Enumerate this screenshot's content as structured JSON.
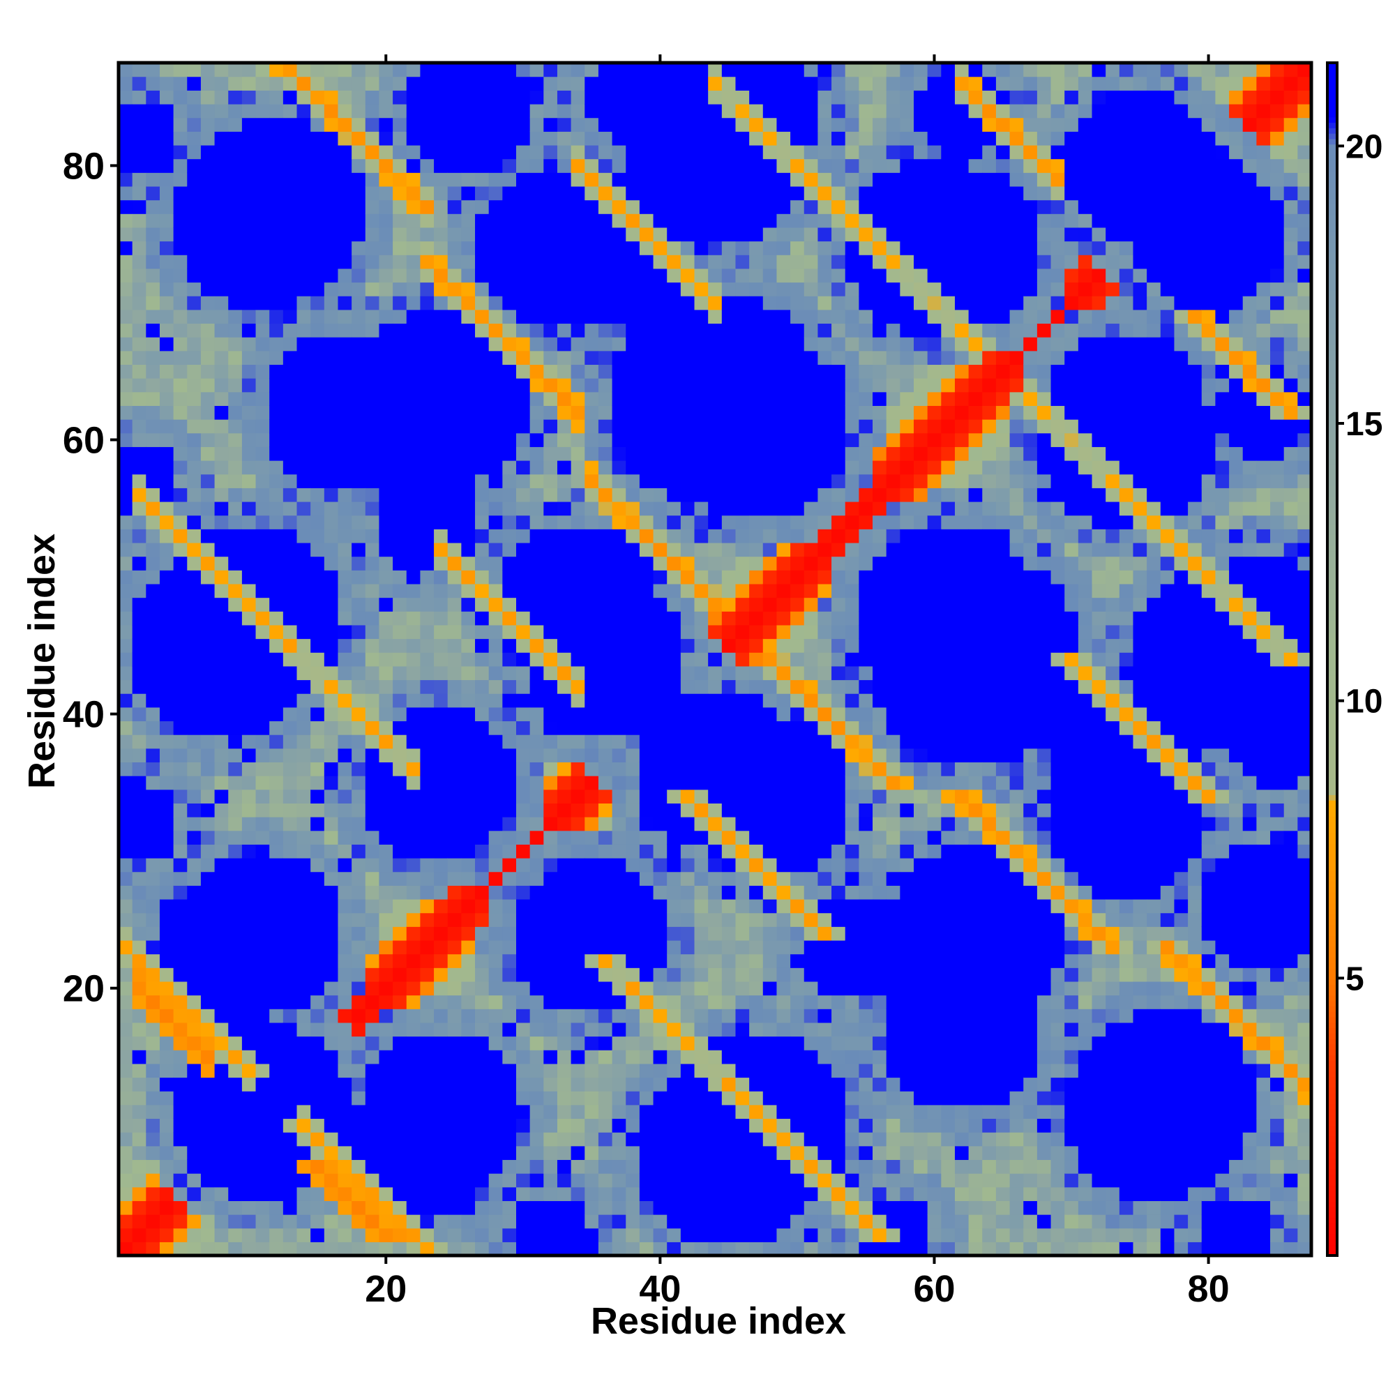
{
  "chart_data": {
    "type": "heatmap",
    "title": "",
    "xlabel": "Residue index",
    "ylabel": "Residue index",
    "n_residues": 87,
    "xlim": [
      0.5,
      87.5
    ],
    "ylim": [
      0.5,
      87.5
    ],
    "x_ticks": [
      20,
      40,
      60,
      80
    ],
    "x_tick_labels": [
      "20",
      "40",
      "60",
      "80"
    ],
    "y_ticks": [
      20,
      40,
      60,
      80
    ],
    "y_tick_labels": [
      "20",
      "40",
      "60",
      "80"
    ],
    "colorbar": {
      "range": [
        0,
        21.5
      ],
      "ticks": [
        5,
        10,
        15,
        20
      ],
      "tick_labels": [
        "5",
        "10",
        "15",
        "20"
      ],
      "stops": [
        {
          "value": 0.0,
          "color": "#ff0000"
        },
        {
          "value": 3.5,
          "color": "#ff3c00"
        },
        {
          "value": 5.0,
          "color": "#ff7a00"
        },
        {
          "value": 7.0,
          "color": "#ff9900"
        },
        {
          "value": 8.2,
          "color": "#ffaa00"
        },
        {
          "value": 8.3,
          "color": "#a8b888"
        },
        {
          "value": 11.0,
          "color": "#a0b890"
        },
        {
          "value": 14.0,
          "color": "#90a8a0"
        },
        {
          "value": 18.0,
          "color": "#7898b0"
        },
        {
          "value": 20.0,
          "color": "#6a8cb8"
        },
        {
          "value": 20.5,
          "color": "#0000ff"
        },
        {
          "value": 21.5,
          "color": "#0000ff"
        }
      ]
    },
    "values_description_note": "",
    "diagonal": {
      "value": 0.5
    },
    "contact_bands": [
      {
        "type": "anti",
        "s": 22,
        "i0": 2,
        "i1": 7,
        "d": 5.0
      },
      {
        "type": "anti",
        "s": 28,
        "i0": 14,
        "i1": 20,
        "d": 4.8
      },
      {
        "type": "anti",
        "s": 24,
        "i0": 1,
        "i1": 21,
        "d": 7.0
      },
      {
        "type": "anti",
        "s": 100,
        "i0": 12,
        "i1": 23,
        "d": 6.3
      },
      {
        "type": "anti",
        "s": 96,
        "i0": 23,
        "i1": 34,
        "d": 6.3
      },
      {
        "type": "anti",
        "s": 92,
        "i0": 35,
        "i1": 44,
        "d": 6.3
      },
      {
        "type": "anti",
        "s": 92,
        "i0": 44,
        "i1": 56,
        "d": 6.2
      },
      {
        "type": "anti",
        "s": 70,
        "i0": 48,
        "i1": 58,
        "d": 6.2
      },
      {
        "type": "anti",
        "s": 96,
        "i0": 62,
        "i1": 71,
        "d": 6.3
      },
      {
        "type": "anti",
        "s": 148,
        "i0": 62,
        "i1": 69,
        "d": 6.3
      },
      {
        "type": "anti",
        "s": 142,
        "i0": 76,
        "i1": 83,
        "d": 6.3
      },
      {
        "type": "anti",
        "s": 88,
        "i0": 76,
        "i1": 84,
        "d": 6.4
      },
      {
        "type": "anti",
        "s": 58,
        "i0": 2,
        "i1": 22,
        "d": 7.2
      },
      {
        "type": "anti",
        "s": 130,
        "i0": 44,
        "i1": 86,
        "d": 7.6
      },
      {
        "type": "anti",
        "s": 76,
        "i0": 24,
        "i1": 34,
        "d": 7.0
      },
      {
        "type": "anti",
        "s": 114,
        "i0": 34,
        "i1": 44,
        "d": 7.0
      }
    ],
    "voids": [
      {
        "x": 11,
        "y": 11,
        "r": 6.5
      },
      {
        "x": 24,
        "y": 11,
        "r": 6.0
      },
      {
        "x": 45,
        "y": 8,
        "r": 7.0
      },
      {
        "x": 62,
        "y": 17,
        "r": 6.0
      },
      {
        "x": 77,
        "y": 12,
        "r": 6.5
      },
      {
        "x": 9,
        "y": 23,
        "r": 5.5
      },
      {
        "x": 24,
        "y": 35,
        "r": 5.5
      },
      {
        "x": 44,
        "y": 36,
        "r": 6.0
      },
      {
        "x": 62,
        "y": 24,
        "r": 5.5
      },
      {
        "x": 74,
        "y": 36,
        "r": 6.0
      },
      {
        "x": 85,
        "y": 38,
        "r": 3.5
      },
      {
        "x": 10,
        "y": 47,
        "r": 7.0
      },
      {
        "x": 34,
        "y": 48,
        "r": 6.0
      },
      {
        "x": 61,
        "y": 47,
        "r": 7.0
      },
      {
        "x": 84,
        "y": 47,
        "r": 5.0
      },
      {
        "x": 24,
        "y": 63,
        "r": 6.5
      },
      {
        "x": 44,
        "y": 63,
        "r": 8.0
      },
      {
        "x": 74,
        "y": 62,
        "r": 6.0
      },
      {
        "x": 84,
        "y": 62,
        "r": 3.5
      },
      {
        "x": 11,
        "y": 76,
        "r": 6.5
      },
      {
        "x": 32,
        "y": 74,
        "r": 5.5
      },
      {
        "x": 44,
        "y": 81,
        "r": 7.0
      },
      {
        "x": 60,
        "y": 74,
        "r": 6.5
      },
      {
        "x": 80,
        "y": 75,
        "r": 5.5
      },
      {
        "x": 26,
        "y": 84,
        "r": 5.0
      },
      {
        "x": 2,
        "y": 32,
        "r": 3.0
      },
      {
        "x": 2,
        "y": 57,
        "r": 3.0
      },
      {
        "x": 2,
        "y": 82,
        "r": 3.0
      },
      {
        "x": 34,
        "y": 23,
        "r": 5.0
      },
      {
        "x": 54,
        "y": 23,
        "r": 4.0
      }
    ],
    "seed": 20240611
  }
}
